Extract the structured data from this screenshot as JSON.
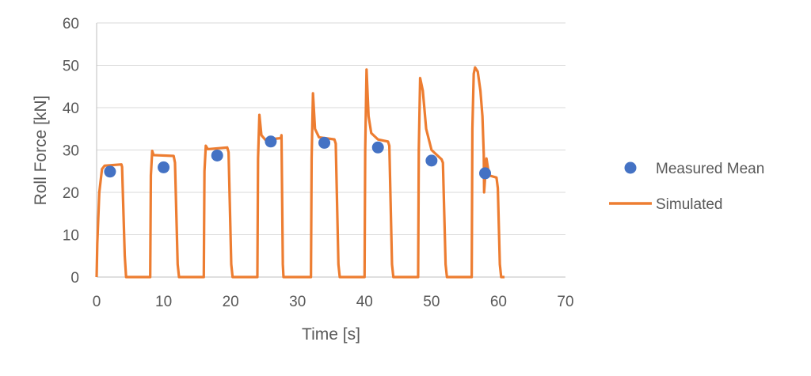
{
  "chart_data": {
    "type": "scatter+line",
    "xlabel": "Time [s]",
    "ylabel": "Roll Force [kN]",
    "xlim": [
      0,
      70
    ],
    "ylim": [
      0,
      60
    ],
    "x_ticks": [
      0,
      10,
      20,
      30,
      40,
      50,
      60,
      70
    ],
    "y_ticks": [
      0,
      10,
      20,
      30,
      40,
      50,
      60
    ],
    "x_tick_labels": [
      "0",
      "10",
      "20",
      "30",
      "40",
      "50",
      "60",
      "70"
    ],
    "y_tick_labels": [
      "0",
      "10",
      "20",
      "30",
      "40",
      "50",
      "60"
    ],
    "grid": "horizontal",
    "legend_position": "right",
    "series": [
      {
        "name": "Measured Mean",
        "kind": "scatter",
        "color": "#4472C4",
        "points": [
          {
            "x": 2,
            "y": 24.9
          },
          {
            "x": 10,
            "y": 25.9
          },
          {
            "x": 18,
            "y": 28.7
          },
          {
            "x": 26,
            "y": 32.0
          },
          {
            "x": 34,
            "y": 31.7
          },
          {
            "x": 42,
            "y": 30.6
          },
          {
            "x": 50,
            "y": 27.5
          },
          {
            "x": 58,
            "y": 24.5
          }
        ]
      },
      {
        "name": "Simulated",
        "kind": "line",
        "color": "#ED7D31",
        "points": [
          [
            0,
            0
          ],
          [
            0.1,
            8
          ],
          [
            0.4,
            20
          ],
          [
            0.8,
            25.5
          ],
          [
            1.2,
            26.3
          ],
          [
            3.7,
            26.6
          ],
          [
            3.8,
            26
          ],
          [
            4.2,
            5
          ],
          [
            4.4,
            0
          ],
          [
            8.0,
            0
          ],
          [
            8.1,
            24
          ],
          [
            8.3,
            29.8
          ],
          [
            8.5,
            28.8
          ],
          [
            11.5,
            28.6
          ],
          [
            11.7,
            27
          ],
          [
            12.1,
            3
          ],
          [
            12.3,
            0
          ],
          [
            16.0,
            0
          ],
          [
            16.1,
            25
          ],
          [
            16.3,
            31
          ],
          [
            16.6,
            30.2
          ],
          [
            19.5,
            30.6
          ],
          [
            19.7,
            29.5
          ],
          [
            20.1,
            3
          ],
          [
            20.3,
            0
          ],
          [
            24.0,
            0
          ],
          [
            24.1,
            28
          ],
          [
            24.3,
            38.3
          ],
          [
            24.6,
            33.5
          ],
          [
            25.2,
            32.4
          ],
          [
            27.5,
            32.8
          ],
          [
            27.6,
            33.5
          ],
          [
            27.8,
            3
          ],
          [
            27.9,
            0
          ],
          [
            32.0,
            0
          ],
          [
            32.1,
            28
          ],
          [
            32.3,
            43.4
          ],
          [
            32.6,
            35
          ],
          [
            33.2,
            33
          ],
          [
            35.5,
            32.5
          ],
          [
            35.7,
            31.5
          ],
          [
            36.1,
            3
          ],
          [
            36.3,
            0
          ],
          [
            40.0,
            0
          ],
          [
            40.1,
            30
          ],
          [
            40.3,
            49
          ],
          [
            40.6,
            38
          ],
          [
            41,
            34
          ],
          [
            42,
            32.5
          ],
          [
            43.5,
            32
          ],
          [
            43.7,
            31
          ],
          [
            44.1,
            3
          ],
          [
            44.3,
            0
          ],
          [
            48.0,
            0
          ],
          [
            48.1,
            30
          ],
          [
            48.3,
            47
          ],
          [
            48.7,
            44
          ],
          [
            49.2,
            35
          ],
          [
            50,
            30
          ],
          [
            51.5,
            27.8
          ],
          [
            51.7,
            27
          ],
          [
            52.1,
            3
          ],
          [
            52.3,
            0
          ],
          [
            56.0,
            0
          ],
          [
            56.1,
            35
          ],
          [
            56.3,
            48
          ],
          [
            56.5,
            49.5
          ],
          [
            56.9,
            48.5
          ],
          [
            57.3,
            44
          ],
          [
            57.6,
            38
          ],
          [
            57.8,
            29
          ],
          [
            57.85,
            20
          ],
          [
            58.2,
            28
          ],
          [
            58.6,
            24
          ],
          [
            59.7,
            23.5
          ],
          [
            59.9,
            21
          ],
          [
            60.2,
            3
          ],
          [
            60.4,
            0
          ],
          [
            60.9,
            0
          ]
        ]
      }
    ]
  }
}
